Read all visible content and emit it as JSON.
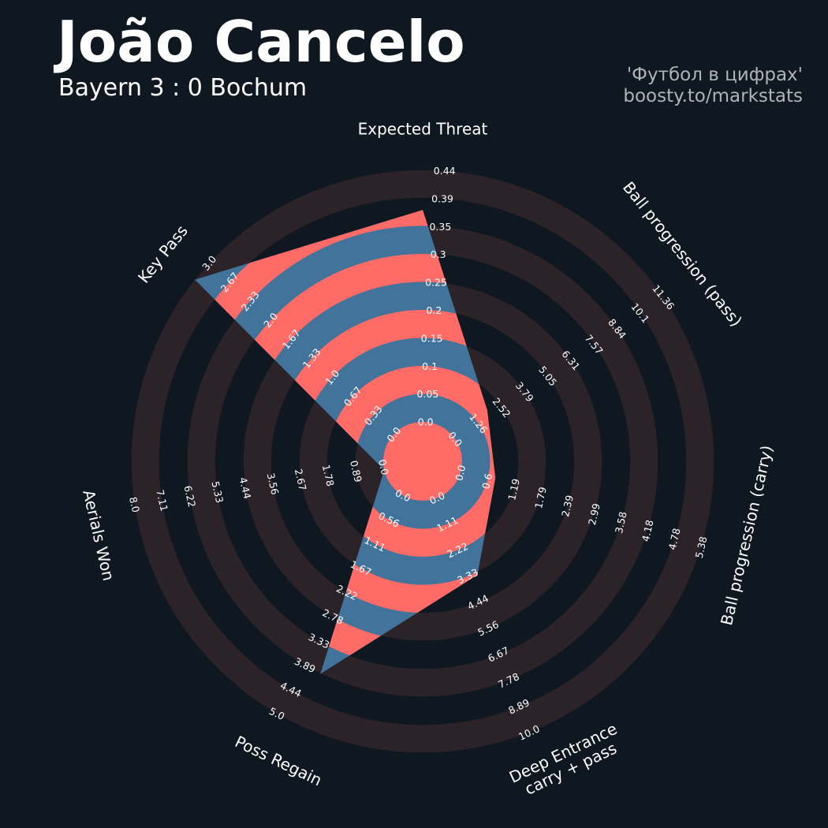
{
  "header": {
    "title": "João Cancelo",
    "subtitle": "Bayern 3 : 0 Bochum",
    "credit_line1": "'Футбол в цифрах'",
    "credit_line2": "boosty.to/markstats"
  },
  "colors": {
    "background": "#0f1820",
    "ring_band": "#2b2328",
    "shape_primary": "#ff6b66",
    "shape_secondary": "#42739a"
  },
  "chart_data": {
    "type": "radar",
    "params": [
      {
        "name": "Expected Threat",
        "value": 0.37,
        "ring_labels": [
          "0.0",
          "0.05",
          "0.1",
          "0.15",
          "0.2",
          "0.25",
          "0.3",
          "0.35",
          "0.39",
          "0.44"
        ]
      },
      {
        "name": "Ball progression (pass)",
        "value": 1.94,
        "ring_labels": [
          "0.0",
          "1.26",
          "2.52",
          "3.79",
          "5.05",
          "6.31",
          "7.57",
          "8.84",
          "10.1",
          "11.36"
        ]
      },
      {
        "name": "Ball progression (carry)",
        "value": 0.75,
        "ring_labels": [
          "0.0",
          "0.6",
          "1.19",
          "1.79",
          "2.39",
          "2.99",
          "3.58",
          "4.18",
          "4.78",
          "5.38"
        ]
      },
      {
        "name": "Deep Entrance\ncarry + pass",
        "value": 3.44,
        "ring_labels": [
          "0.0",
          "1.11",
          "2.22",
          "3.33",
          "4.44",
          "5.56",
          "6.67",
          "7.78",
          "8.89",
          "10.0"
        ]
      },
      {
        "name": "Poss Regain",
        "value": 3.9,
        "ring_labels": [
          "0.0",
          "0.56",
          "1.11",
          "1.67",
          "2.22",
          "2.78",
          "3.33",
          "3.89",
          "4.44",
          "5.0"
        ]
      },
      {
        "name": "Aerials Won",
        "value": 0.0,
        "ring_labels": [
          "0.0",
          "0.89",
          "1.78",
          "2.67",
          "3.56",
          "4.44",
          "5.33",
          "6.22",
          "7.11",
          "8.0"
        ]
      },
      {
        "name": "Key Pass",
        "value": 3.0,
        "ring_labels": [
          "0.0",
          "0.33",
          "0.67",
          "1.0",
          "1.33",
          "1.67",
          "2.0",
          "2.33",
          "2.67",
          "3.0"
        ]
      }
    ],
    "rings": 10,
    "scale_note": "values read off ring labels"
  }
}
